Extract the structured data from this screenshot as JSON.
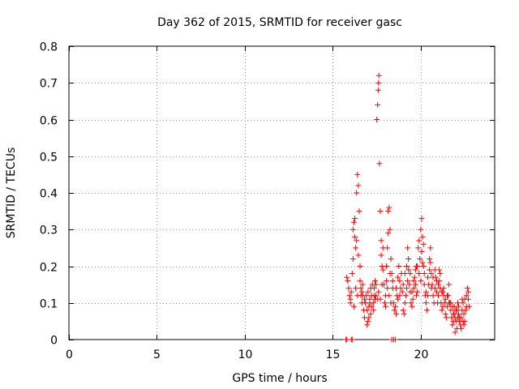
{
  "chart_data": {
    "type": "scatter",
    "title": "Day 362 of 2015, SRMTID for receiver gasc",
    "xlabel": "GPS time / hours",
    "ylabel": "SRMTID / TECUs",
    "xlim": [
      0,
      24.2
    ],
    "ylim": [
      0,
      0.8
    ],
    "xticks": [
      0,
      5,
      10,
      15,
      20
    ],
    "xtick_labels": [
      "0",
      "5",
      "10",
      "15",
      "20"
    ],
    "yticks": [
      0,
      0.1,
      0.2,
      0.3,
      0.4,
      0.5,
      0.6,
      0.7,
      0.8
    ],
    "ytick_labels": [
      "0",
      "0.1",
      "0.2",
      "0.3",
      "0.4",
      "0.5",
      "0.6",
      "0.7",
      "0.8"
    ],
    "grid": true,
    "marker": "plus",
    "color": "#ff0000",
    "series": [
      {
        "name": "gasc",
        "points": [
          [
            15.75,
            0.0
          ],
          [
            15.8,
            0.0
          ],
          [
            16.05,
            0.0
          ],
          [
            16.1,
            0.0
          ],
          [
            18.35,
            0.0
          ],
          [
            18.45,
            0.0
          ],
          [
            18.55,
            0.0
          ],
          [
            15.8,
            0.17
          ],
          [
            15.85,
            0.16
          ],
          [
            15.9,
            0.14
          ],
          [
            15.95,
            0.12
          ],
          [
            16.0,
            0.1
          ],
          [
            16.05,
            0.13
          ],
          [
            16.1,
            0.18
          ],
          [
            16.15,
            0.3
          ],
          [
            16.2,
            0.32
          ],
          [
            16.25,
            0.28
          ],
          [
            16.3,
            0.25
          ],
          [
            16.35,
            0.4
          ],
          [
            16.4,
            0.45
          ],
          [
            16.45,
            0.42
          ],
          [
            16.5,
            0.35
          ],
          [
            16.55,
            0.2
          ],
          [
            16.6,
            0.12
          ],
          [
            16.65,
            0.1
          ],
          [
            16.7,
            0.15
          ],
          [
            16.75,
            0.08
          ],
          [
            16.8,
            0.06
          ],
          [
            16.85,
            0.1
          ],
          [
            16.9,
            0.12
          ],
          [
            16.95,
            0.08
          ],
          [
            17.0,
            0.05
          ],
          [
            17.05,
            0.09
          ],
          [
            17.1,
            0.11
          ],
          [
            17.15,
            0.07
          ],
          [
            17.2,
            0.12
          ],
          [
            17.25,
            0.15
          ],
          [
            17.3,
            0.1
          ],
          [
            17.35,
            0.14
          ],
          [
            17.4,
            0.16
          ],
          [
            17.45,
            0.12
          ],
          [
            17.5,
            0.6
          ],
          [
            17.55,
            0.64
          ],
          [
            17.58,
            0.68
          ],
          [
            17.6,
            0.7
          ],
          [
            17.62,
            0.72
          ],
          [
            17.65,
            0.48
          ],
          [
            17.7,
            0.35
          ],
          [
            17.75,
            0.27
          ],
          [
            17.8,
            0.2
          ],
          [
            17.85,
            0.25
          ],
          [
            17.9,
            0.15
          ],
          [
            17.95,
            0.1
          ],
          [
            18.0,
            0.12
          ],
          [
            18.05,
            0.2
          ],
          [
            18.1,
            0.25
          ],
          [
            18.15,
            0.35
          ],
          [
            18.2,
            0.36
          ],
          [
            18.25,
            0.3
          ],
          [
            18.3,
            0.22
          ],
          [
            18.35,
            0.18
          ],
          [
            18.4,
            0.14
          ],
          [
            18.45,
            0.1
          ],
          [
            18.5,
            0.08
          ],
          [
            18.55,
            0.09
          ],
          [
            18.6,
            0.07
          ],
          [
            18.65,
            0.12
          ],
          [
            18.7,
            0.17
          ],
          [
            18.75,
            0.2
          ],
          [
            18.8,
            0.16
          ],
          [
            18.85,
            0.14
          ],
          [
            18.9,
            0.18
          ],
          [
            18.95,
            0.13
          ],
          [
            19.0,
            0.08
          ],
          [
            19.05,
            0.07
          ],
          [
            19.1,
            0.1
          ],
          [
            19.15,
            0.12
          ],
          [
            19.2,
            0.2
          ],
          [
            19.25,
            0.25
          ],
          [
            19.3,
            0.22
          ],
          [
            19.35,
            0.15
          ],
          [
            19.4,
            0.13
          ],
          [
            19.45,
            0.1
          ],
          [
            19.5,
            0.09
          ],
          [
            19.55,
            0.11
          ],
          [
            19.6,
            0.14
          ],
          [
            19.65,
            0.17
          ],
          [
            19.7,
            0.15
          ],
          [
            19.75,
            0.12
          ],
          [
            19.8,
            0.2
          ],
          [
            19.85,
            0.25
          ],
          [
            19.9,
            0.27
          ],
          [
            19.95,
            0.22
          ],
          [
            20.0,
            0.3
          ],
          [
            20.05,
            0.33
          ],
          [
            20.1,
            0.28
          ],
          [
            20.15,
            0.2
          ],
          [
            20.2,
            0.15
          ],
          [
            20.25,
            0.12
          ],
          [
            20.3,
            0.1
          ],
          [
            20.35,
            0.08
          ],
          [
            20.4,
            0.12
          ],
          [
            20.45,
            0.15
          ],
          [
            20.5,
            0.22
          ],
          [
            20.55,
            0.25
          ],
          [
            20.6,
            0.18
          ],
          [
            20.65,
            0.15
          ],
          [
            20.7,
            0.12
          ],
          [
            20.75,
            0.1
          ],
          [
            20.8,
            0.14
          ],
          [
            20.85,
            0.17
          ],
          [
            20.9,
            0.13
          ],
          [
            20.95,
            0.1
          ],
          [
            21.0,
            0.12
          ],
          [
            21.05,
            0.16
          ],
          [
            21.1,
            0.14
          ],
          [
            21.15,
            0.1
          ],
          [
            21.2,
            0.08
          ],
          [
            21.25,
            0.09
          ],
          [
            21.3,
            0.12
          ],
          [
            21.35,
            0.1
          ],
          [
            21.4,
            0.07
          ],
          [
            21.45,
            0.06
          ],
          [
            21.5,
            0.09
          ],
          [
            21.55,
            0.12
          ],
          [
            21.6,
            0.15
          ],
          [
            21.65,
            0.1
          ],
          [
            21.7,
            0.08
          ],
          [
            21.75,
            0.06
          ],
          [
            21.8,
            0.04
          ],
          [
            21.85,
            0.07
          ],
          [
            21.9,
            0.09
          ],
          [
            21.95,
            0.06
          ],
          [
            22.0,
            0.05
          ],
          [
            22.05,
            0.08
          ],
          [
            22.1,
            0.1
          ],
          [
            22.15,
            0.07
          ],
          [
            22.2,
            0.05
          ],
          [
            22.25,
            0.04
          ],
          [
            22.3,
            0.06
          ],
          [
            22.35,
            0.08
          ],
          [
            22.4,
            0.1
          ],
          [
            22.45,
            0.07
          ],
          [
            22.5,
            0.05
          ],
          [
            22.55,
            0.08
          ],
          [
            22.6,
            0.12
          ],
          [
            22.65,
            0.14
          ],
          [
            22.7,
            0.11
          ],
          [
            22.75,
            0.09
          ],
          [
            16.0,
            0.11
          ],
          [
            16.2,
            0.09
          ],
          [
            16.4,
            0.12
          ],
          [
            16.6,
            0.14
          ],
          [
            16.8,
            0.11
          ],
          [
            17.0,
            0.13
          ],
          [
            17.2,
            0.09
          ],
          [
            17.4,
            0.11
          ],
          [
            17.6,
            0.13
          ],
          [
            17.8,
            0.15
          ],
          [
            18.0,
            0.09
          ],
          [
            18.2,
            0.12
          ],
          [
            18.4,
            0.16
          ],
          [
            18.6,
            0.14
          ],
          [
            18.8,
            0.12
          ],
          [
            19.0,
            0.15
          ],
          [
            19.2,
            0.14
          ],
          [
            19.4,
            0.18
          ],
          [
            19.6,
            0.16
          ],
          [
            19.8,
            0.13
          ],
          [
            20.0,
            0.16
          ],
          [
            20.2,
            0.18
          ],
          [
            20.4,
            0.17
          ],
          [
            20.6,
            0.14
          ],
          [
            20.8,
            0.19
          ],
          [
            21.0,
            0.15
          ],
          [
            21.2,
            0.13
          ],
          [
            21.4,
            0.11
          ],
          [
            21.6,
            0.1
          ],
          [
            21.8,
            0.09
          ],
          [
            22.0,
            0.08
          ],
          [
            22.2,
            0.06
          ],
          [
            22.4,
            0.05
          ],
          [
            22.6,
            0.09
          ],
          [
            16.3,
            0.14
          ],
          [
            16.7,
            0.12
          ],
          [
            17.1,
            0.1
          ],
          [
            17.3,
            0.08
          ],
          [
            17.7,
            0.11
          ],
          [
            18.1,
            0.14
          ],
          [
            18.3,
            0.1
          ],
          [
            18.7,
            0.11
          ],
          [
            19.1,
            0.18
          ],
          [
            19.3,
            0.19
          ],
          [
            19.5,
            0.13
          ],
          [
            19.7,
            0.19
          ],
          [
            19.9,
            0.18
          ],
          [
            20.1,
            0.21
          ],
          [
            20.3,
            0.13
          ],
          [
            20.5,
            0.19
          ],
          [
            20.7,
            0.17
          ],
          [
            20.9,
            0.16
          ],
          [
            21.1,
            0.18
          ],
          [
            21.3,
            0.14
          ],
          [
            21.5,
            0.12
          ],
          [
            21.7,
            0.1
          ],
          [
            21.9,
            0.07
          ],
          [
            22.1,
            0.06
          ],
          [
            22.3,
            0.03
          ],
          [
            22.5,
            0.11
          ],
          [
            22.7,
            0.13
          ],
          [
            16.15,
            0.22
          ],
          [
            16.25,
            0.33
          ],
          [
            16.35,
            0.27
          ],
          [
            16.45,
            0.23
          ],
          [
            16.55,
            0.16
          ],
          [
            16.65,
            0.13
          ],
          [
            17.15,
            0.14
          ],
          [
            17.35,
            0.12
          ],
          [
            17.45,
            0.15
          ],
          [
            17.55,
            0.11
          ],
          [
            17.75,
            0.23
          ],
          [
            17.85,
            0.19
          ],
          [
            18.05,
            0.16
          ],
          [
            18.15,
            0.29
          ],
          [
            18.25,
            0.18
          ],
          [
            19.25,
            0.16
          ],
          [
            19.75,
            0.2
          ],
          [
            20.05,
            0.24
          ],
          [
            20.15,
            0.26
          ],
          [
            20.55,
            0.21
          ],
          [
            21.05,
            0.19
          ],
          [
            21.25,
            0.13
          ],
          [
            22.15,
            0.09
          ],
          [
            22.35,
            0.11
          ],
          [
            21.95,
            0.02
          ],
          [
            22.05,
            0.03
          ],
          [
            21.85,
            0.05
          ],
          [
            22.45,
            0.04
          ],
          [
            17.05,
            0.06
          ],
          [
            16.95,
            0.04
          ]
        ]
      }
    ]
  }
}
